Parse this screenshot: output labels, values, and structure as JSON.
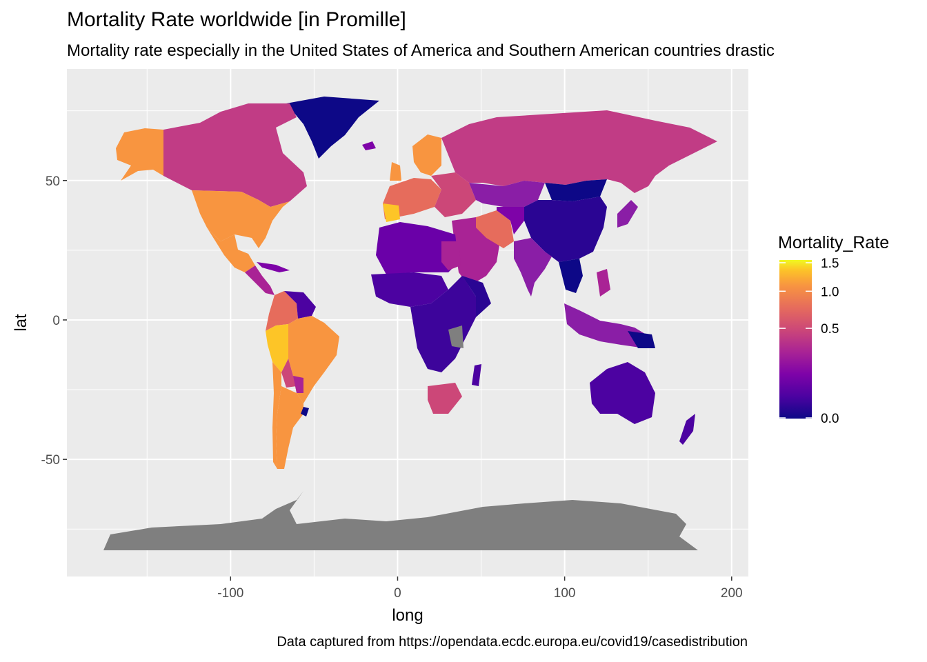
{
  "title": "Mortality Rate worldwide [in Promille]",
  "subtitle": "Mortality rate especially in the United States of America and Southern American countries drastic",
  "caption": "Data captured from https://opendata.ecdc.europa.eu/covid19/casedistribution",
  "colors": {
    "panel_bg": "#ebebeb",
    "grid": "#ffffff",
    "na_fill": "#7f7f7f",
    "scale_low": "#0d0887",
    "scale_high": "#f0f921"
  },
  "chart_data": {
    "type": "map",
    "xlabel": "long",
    "ylabel": "lat",
    "xlim": [
      -198,
      210
    ],
    "ylim": [
      -92,
      90
    ],
    "x_ticks": [
      -100,
      0,
      100,
      200
    ],
    "x_tick_labels": [
      "-100",
      "0",
      "100",
      "200"
    ],
    "y_ticks": [
      -50,
      0,
      50
    ],
    "y_tick_labels": [
      "-50",
      "0",
      "50"
    ],
    "legend": {
      "title": "Mortality_Rate",
      "position": "right",
      "ticks": [
        1.5,
        1.0,
        0.5,
        0.0
      ],
      "tick_labels": [
        "1.5",
        "1.0",
        "0.5",
        "0.0"
      ],
      "palette": "plasma"
    },
    "regions": [
      {
        "name": "Greenland",
        "value": 0.0
      },
      {
        "name": "Alaska",
        "value": 0.9
      },
      {
        "name": "Canada",
        "value": 0.45
      },
      {
        "name": "United States",
        "value": 0.9
      },
      {
        "name": "Mexico",
        "value": 0.9
      },
      {
        "name": "Central America",
        "value": 0.4
      },
      {
        "name": "Colombia/Ecuador",
        "value": 0.75
      },
      {
        "name": "Venezuela/Guianas",
        "value": 0.15
      },
      {
        "name": "Brazil",
        "value": 0.85
      },
      {
        "name": "Peru",
        "value": 1.3
      },
      {
        "name": "Bolivia",
        "value": 0.55
      },
      {
        "name": "Paraguay",
        "value": 0.3
      },
      {
        "name": "Argentina",
        "value": 0.9
      },
      {
        "name": "Chile",
        "value": 0.95
      },
      {
        "name": "Uruguay",
        "value": 0.05
      },
      {
        "name": "Western Europe",
        "value": 0.8
      },
      {
        "name": "Scandinavia",
        "value": 0.75
      },
      {
        "name": "Eastern Europe",
        "value": 0.5
      },
      {
        "name": "Russia",
        "value": 0.4
      },
      {
        "name": "Middle East",
        "value": 0.4
      },
      {
        "name": "Iran",
        "value": 0.6
      },
      {
        "name": "Central Asia",
        "value": 0.25
      },
      {
        "name": "India",
        "value": 0.28
      },
      {
        "name": "China",
        "value": 0.05
      },
      {
        "name": "Mongolia",
        "value": 0.0
      },
      {
        "name": "Southeast Asia",
        "value": 0.05
      },
      {
        "name": "Indonesia",
        "value": 0.28
      },
      {
        "name": "Japan",
        "value": 0.2
      },
      {
        "name": "North Africa",
        "value": 0.22
      },
      {
        "name": "West Africa",
        "value": 0.1
      },
      {
        "name": "East Africa",
        "value": 0.08
      },
      {
        "name": "Southern Africa",
        "value": 0.6
      },
      {
        "name": "Australia",
        "value": 0.1
      },
      {
        "name": "New Zealand",
        "value": 0.1
      },
      {
        "name": "Antarctica",
        "value": null
      },
      {
        "name": "Kazakhstan",
        "value": 0.3
      }
    ]
  }
}
